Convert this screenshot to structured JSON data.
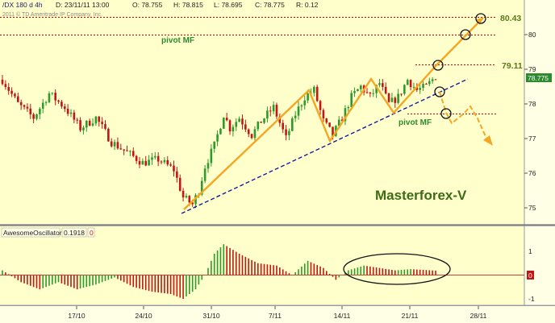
{
  "header": {
    "symbol": "/DX 180 d 4h",
    "date_label": "D: 23/11/11 13:00",
    "open_label": "O: 78.755",
    "high_label": "H: 78.815",
    "low_label": "L: 78.695",
    "close_label": "C: 78.775",
    "range_label": "R: 0.12",
    "copyright": "2011 © TD Ameritrade IP Company, Inc."
  },
  "annotations": {
    "pivot_upper": "pivot MF",
    "pivot_lower": "pivot MF",
    "target_top": "80.43",
    "target_mid": "79.11",
    "watermark": "Masterforex-V",
    "last_price": "78.775"
  },
  "indicator": {
    "name": "AwesomeOscillator",
    "value": "0.1918",
    "extra": "0"
  },
  "colors": {
    "background": "#ffffcc",
    "up_candle": "#2e9a2e",
    "down_candle": "#c21616",
    "pattern_line": "#f5a623",
    "trendline": "#1a1aa0",
    "pivot_line": "#c80000",
    "watermark": "#3d6b16"
  },
  "chart_data": [
    {
      "type": "candlestick",
      "title": "/DX 180 d 4h",
      "x_tick_labels": [
        "17/10",
        "24/10",
        "31/10",
        "7/11",
        "14/11",
        "21/11",
        "28/11"
      ],
      "y_tick_labels": [
        "75",
        "76",
        "77",
        "78",
        "79",
        "80"
      ],
      "ylim": [
        74.8,
        80.6
      ],
      "grid": false,
      "price_path": [
        {
          "i": 0,
          "p": 78.7
        },
        {
          "i": 5,
          "p": 78.0
        },
        {
          "i": 10,
          "p": 77.6
        },
        {
          "i": 15,
          "p": 78.3
        },
        {
          "i": 20,
          "p": 77.9
        },
        {
          "i": 25,
          "p": 77.3
        },
        {
          "i": 30,
          "p": 77.6
        },
        {
          "i": 35,
          "p": 76.9
        },
        {
          "i": 40,
          "p": 76.6
        },
        {
          "i": 45,
          "p": 76.3
        },
        {
          "i": 50,
          "p": 76.4
        },
        {
          "i": 55,
          "p": 76.1
        },
        {
          "i": 58,
          "p": 75.3
        },
        {
          "i": 61,
          "p": 75.1
        },
        {
          "i": 63,
          "p": 75.5
        },
        {
          "i": 65,
          "p": 76.2
        },
        {
          "i": 68,
          "p": 76.8
        },
        {
          "i": 71,
          "p": 77.7
        },
        {
          "i": 73,
          "p": 77.3
        },
        {
          "i": 76,
          "p": 77.6
        },
        {
          "i": 80,
          "p": 77.1
        },
        {
          "i": 83,
          "p": 77.5
        },
        {
          "i": 87,
          "p": 77.9
        },
        {
          "i": 91,
          "p": 77.0
        },
        {
          "i": 94,
          "p": 77.7
        },
        {
          "i": 97,
          "p": 78.2
        },
        {
          "i": 100,
          "p": 78.4
        },
        {
          "i": 103,
          "p": 77.5
        },
        {
          "i": 106,
          "p": 77.1
        },
        {
          "i": 109,
          "p": 77.6
        },
        {
          "i": 112,
          "p": 78.2
        },
        {
          "i": 115,
          "p": 78.5
        },
        {
          "i": 118,
          "p": 78.2
        },
        {
          "i": 121,
          "p": 78.6
        },
        {
          "i": 124,
          "p": 78.0
        },
        {
          "i": 127,
          "p": 78.2
        },
        {
          "i": 130,
          "p": 78.7
        },
        {
          "i": 133,
          "p": 78.4
        },
        {
          "i": 136,
          "p": 78.5
        },
        {
          "i": 139,
          "p": 78.8
        }
      ],
      "horizontal_levels": [
        80.43,
        80.0,
        79.11,
        77.8
      ],
      "last_price": 78.775
    },
    {
      "type": "bar",
      "title": "AwesomeOscillator",
      "y_tick_labels": [
        "1",
        "0",
        "-1"
      ],
      "ylim": [
        -1.3,
        1.4
      ],
      "value_path": [
        {
          "i": 0,
          "v": 0.2
        },
        {
          "i": 6,
          "v": -0.3
        },
        {
          "i": 12,
          "v": -0.6
        },
        {
          "i": 18,
          "v": -0.3
        },
        {
          "i": 24,
          "v": -0.6
        },
        {
          "i": 30,
          "v": -0.4
        },
        {
          "i": 36,
          "v": -0.1
        },
        {
          "i": 42,
          "v": -0.5
        },
        {
          "i": 48,
          "v": -0.7
        },
        {
          "i": 54,
          "v": -0.8
        },
        {
          "i": 58,
          "v": -1.0
        },
        {
          "i": 62,
          "v": -0.6
        },
        {
          "i": 65,
          "v": 0.0
        },
        {
          "i": 68,
          "v": 0.9
        },
        {
          "i": 71,
          "v": 1.3
        },
        {
          "i": 76,
          "v": 0.9
        },
        {
          "i": 82,
          "v": 0.5
        },
        {
          "i": 88,
          "v": 0.4
        },
        {
          "i": 93,
          "v": 0.0
        },
        {
          "i": 98,
          "v": 0.6
        },
        {
          "i": 103,
          "v": 0.3
        },
        {
          "i": 107,
          "v": -0.2
        },
        {
          "i": 111,
          "v": 0.2
        },
        {
          "i": 116,
          "v": 0.4
        },
        {
          "i": 121,
          "v": 0.3
        },
        {
          "i": 126,
          "v": 0.2
        },
        {
          "i": 131,
          "v": 0.25
        },
        {
          "i": 139,
          "v": 0.19
        }
      ]
    }
  ]
}
